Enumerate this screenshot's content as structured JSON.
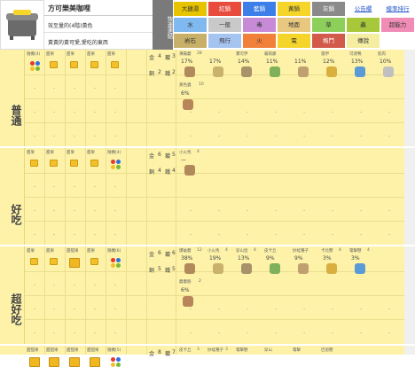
{
  "header": {
    "title": "方可樂美咖哩",
    "row1": "效至量的(4階)黃色",
    "row2": "黃黃的黃可愛,愛吃的東西",
    "nav_label": "快速連結"
  },
  "links": [
    {
      "label": "大雞湯",
      "bg": "#e8c400",
      "fg": "#333"
    },
    {
      "label": "紅鍋",
      "bg": "#e84c3d",
      "fg": "#fff"
    },
    {
      "label": "藍鍋",
      "bg": "#3d7fe8",
      "fg": "#fff"
    },
    {
      "label": "黃鍋",
      "bg": "#f5d52a",
      "fg": "#333"
    },
    {
      "label": "灰鍋",
      "bg": "#8a8a8a",
      "fg": "#fff"
    },
    {
      "label": "公告欄",
      "bg": "#ffffff",
      "fg": "#2255cc"
    },
    {
      "label": "模率排行",
      "bg": "#ffffff",
      "fg": "#2255cc"
    },
    {
      "label": "水",
      "bg": "#7fb9f0",
      "fg": "#333"
    },
    {
      "label": "一般",
      "bg": "#c9c9c9",
      "fg": "#333"
    },
    {
      "label": "毒",
      "bg": "#c68ad6",
      "fg": "#333"
    },
    {
      "label": "地面",
      "bg": "#e8c77f",
      "fg": "#333"
    },
    {
      "label": "草",
      "bg": "#8ccf5a",
      "fg": "#333"
    },
    {
      "label": "蟲",
      "bg": "#a6c83a",
      "fg": "#333"
    },
    {
      "label": "超能力",
      "bg": "#f08cb5",
      "fg": "#333"
    },
    {
      "label": "岩石",
      "bg": "#c9b068",
      "fg": "#333"
    },
    {
      "label": "飛行",
      "bg": "#a6c4f0",
      "fg": "#333"
    },
    {
      "label": "火",
      "bg": "#f0803a",
      "fg": "#333"
    },
    {
      "label": "電",
      "bg": "#f5d52a",
      "fg": "#333"
    },
    {
      "label": "格鬥",
      "bg": "#d25a4a",
      "fg": "#fff"
    },
    {
      "label": "傳說",
      "bg": "#f5eda0",
      "fg": "#333"
    }
  ],
  "sections": [
    {
      "name": "普通",
      "food_headers": [
        "隨機(4)",
        "甜果",
        "甜果",
        "甜果",
        "甜果"
      ],
      "stat_a": [
        "金",
        "4",
        "鍍",
        "3"
      ],
      "stat_b": [
        "銅",
        "2",
        "鐵",
        "2"
      ],
      "mons": [
        {
          "name": "薄霧蘑",
          "no": "28",
          "pct": "17%"
        },
        {
          "name": "",
          "no": "",
          "pct": "17%"
        },
        {
          "name": "寶可伊",
          "no": "",
          "pct": "14%"
        },
        {
          "name": "霧雨藤",
          "no": "",
          "pct": "11%"
        },
        {
          "name": "",
          "no": "",
          "pct": "11%"
        },
        {
          "name": "雷伊",
          "no": "",
          "pct": "12%"
        },
        {
          "name": "可達鴨",
          "no": "",
          "pct": "13%"
        },
        {
          "name": "肌肉",
          "no": "",
          "pct": "10%"
        }
      ],
      "extra": {
        "name": "黃色蟲",
        "no": "10",
        "pct": "6%"
      }
    },
    {
      "name": "好吃",
      "food_headers": [
        "甜果",
        "甜果",
        "甜果",
        "甜果",
        "隨機(4)"
      ],
      "stat_a": [
        "金",
        "6",
        "鍍",
        "5"
      ],
      "stat_b": [
        "銅",
        "4",
        "鐵",
        "4"
      ],
      "mons": [
        {
          "name": "小火馬",
          "no": "4",
          "pct": "—"
        }
      ]
    },
    {
      "name": "超好吃",
      "food_headers": [
        "甜果",
        "甜果",
        "甜甜果",
        "甜果",
        "隨機(6)"
      ],
      "stat_a": [
        "金",
        "6",
        "鍍",
        "6"
      ],
      "stat_b": [
        "銅",
        "5",
        "鐵",
        "5"
      ],
      "mons": [
        {
          "name": "爆破蘑",
          "no": "12",
          "pct": "38%"
        },
        {
          "name": "小火馬",
          "no": "4",
          "pct": "19%"
        },
        {
          "name": "穿山鼠",
          "no": "4",
          "pct": "13%"
        },
        {
          "name": "皮卡丘",
          "no": "",
          "pct": "9%"
        },
        {
          "name": "妙蛙種子",
          "no": "",
          "pct": "9%"
        },
        {
          "name": "卡比獸",
          "no": "4",
          "pct": "3%"
        },
        {
          "name": "電擊獸",
          "no": "4",
          "pct": "3%"
        }
      ],
      "extra": {
        "name": "蘑蘑朋",
        "no": "2",
        "pct": "6%"
      }
    },
    {
      "name": "",
      "food_headers": [
        "甜甜果",
        "甜甜果",
        "甜甜果",
        "甜甜果",
        "隨機(5)"
      ],
      "stat_a": [
        "金",
        "8",
        "鍍",
        "7"
      ],
      "mons": [
        {
          "name": "皮卡丘",
          "no": "3"
        },
        {
          "name": "妙蛙種子",
          "no": "3"
        },
        {
          "name": "電擊獸",
          "no": ""
        },
        {
          "name": "穿山",
          "no": ""
        },
        {
          "name": "電擊",
          "no": ""
        },
        {
          "name": "巴恩獸",
          "no": ""
        }
      ]
    }
  ],
  "colors": {
    "grid_bg": "#fdf2a8",
    "nav_bg": "#7a7a7a",
    "cube": "#f2c02a"
  }
}
